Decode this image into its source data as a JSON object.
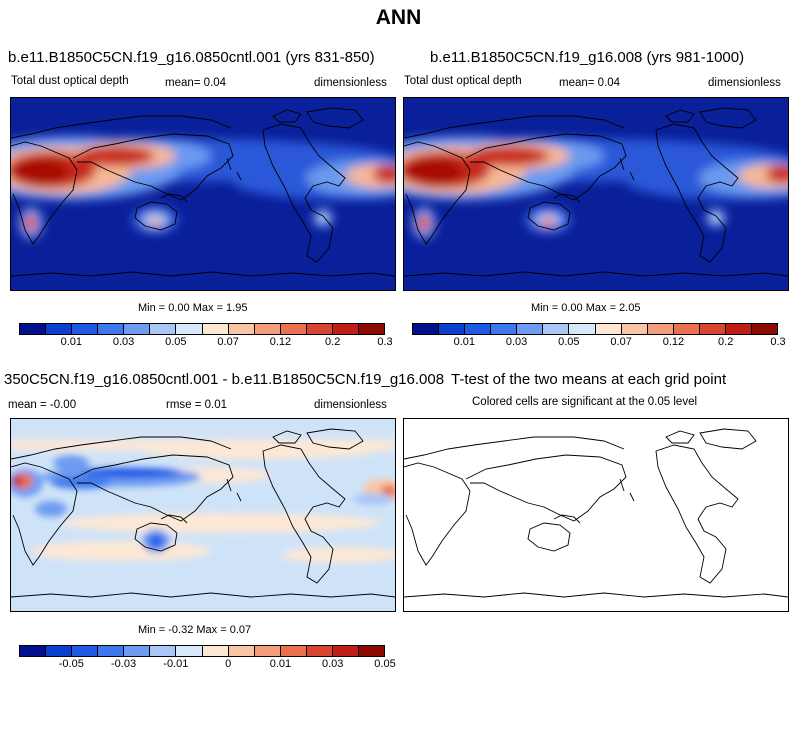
{
  "title": "ANN",
  "panels": [
    {
      "title": "b.e11.B1850C5CN.f19_g16.0850cntl.001 (yrs 831-850)",
      "variable": "Total dust optical depth",
      "mean": "mean=   0.04",
      "units": "dimensionless",
      "minmax": "Min =   0.00 Max =    1.95"
    },
    {
      "title": "b.e11.B1850C5CN.f19_g16.008 (yrs 981-1000)",
      "variable": "Total dust optical depth",
      "mean": "mean=   0.04",
      "units": "dimensionless",
      "minmax": "Min =   0.00 Max =    2.05"
    },
    {
      "title": "350C5CN.f19_g16.0850cntl.001 - b.e11.B1850C5CN.f19_g16.008",
      "mean": "mean =  -0.00",
      "rmse": "rmse =   0.01",
      "units": "dimensionless",
      "minmax": "Min =  -0.32 Max =    0.07"
    },
    {
      "title": "T-test of the two means at each grid point",
      "subtitle": "Colored cells are significant at the 0.05 level"
    }
  ],
  "colorbar_abs": {
    "colors": [
      "#000f8c",
      "#0a3fd0",
      "#1f5ae6",
      "#3e78ee",
      "#6e9cf2",
      "#a9c6f6",
      "#d8e8fb",
      "#fde8d6",
      "#f9c6a5",
      "#f39e7c",
      "#ea7050",
      "#da4530",
      "#c01e16",
      "#8c0a00"
    ],
    "labels": [
      "0.01",
      "0.03",
      "0.05",
      "0.07",
      "0.12",
      "0.2",
      "0.3"
    ]
  },
  "colorbar_diff": {
    "colors": [
      "#000f8c",
      "#0a3fd0",
      "#1f5ae6",
      "#3e78ee",
      "#6e9cf2",
      "#a9c6f6",
      "#d8e8fb",
      "#fde8d6",
      "#f9c6a5",
      "#f39e7c",
      "#ea7050",
      "#da4530",
      "#c01e16",
      "#8c0a00"
    ],
    "labels": [
      "-0.05",
      "-0.03",
      "-0.01",
      "0",
      "0.01",
      "0.03",
      "0.05"
    ]
  },
  "map_colors": {
    "background_abs": "#0a1f9a",
    "background_diff": "#cfe3f8",
    "peak_red": "#a80f05",
    "coast": "#000000"
  }
}
